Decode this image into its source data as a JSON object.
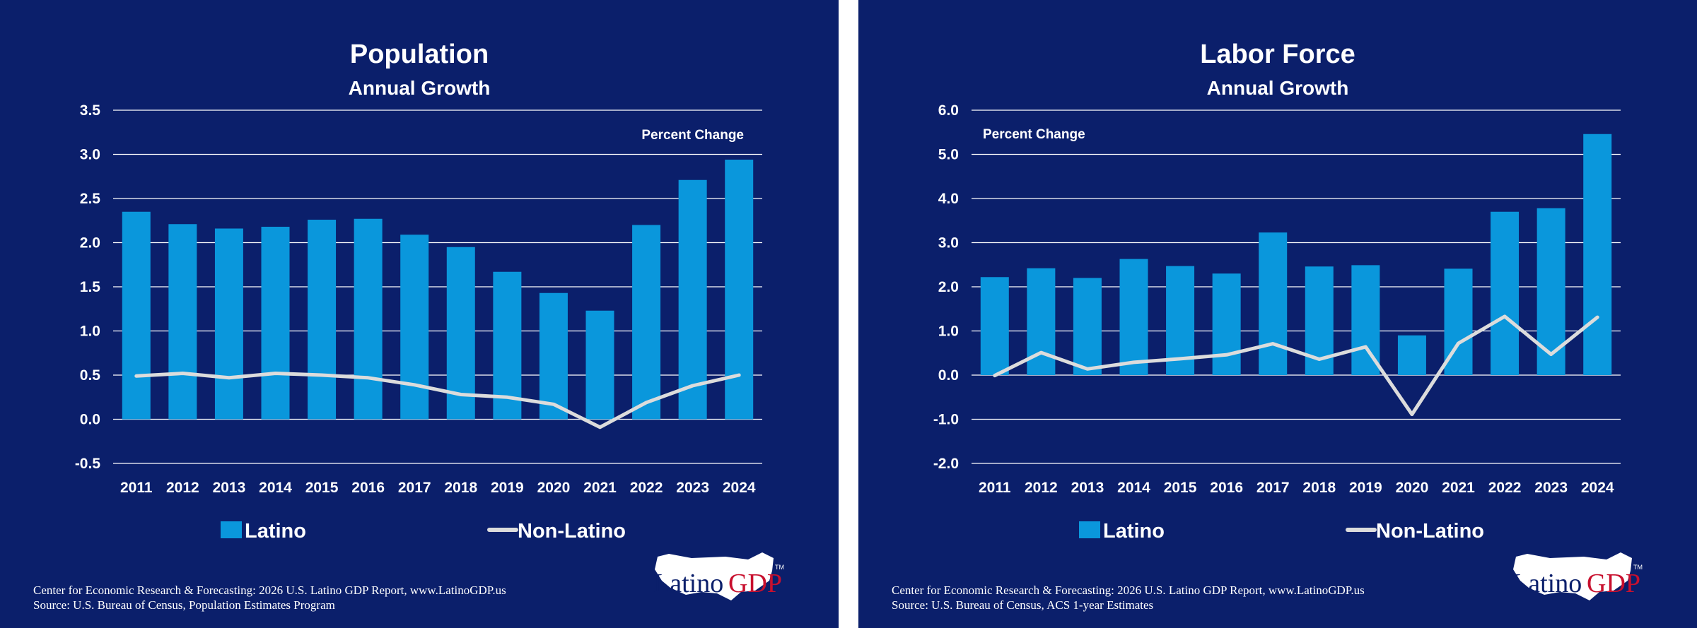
{
  "colors": {
    "background": "#0b1f6b",
    "bar": "#0a97dc",
    "line": "#dcdcdc",
    "grid": "#ffffff",
    "text": "#ffffff",
    "logo_red": "#c8102e"
  },
  "logo": {
    "text_latino": "Latino",
    "text_gdp": "GDP",
    "tm": "TM"
  },
  "chart_data": [
    {
      "type": "bar",
      "title": "Population",
      "subtitle": "Annual Growth",
      "annotation": "Percent Change",
      "annotation_position": "top-right",
      "categories": [
        "2011",
        "2012",
        "2013",
        "2014",
        "2015",
        "2016",
        "2017",
        "2018",
        "2019",
        "2020",
        "2021",
        "2022",
        "2023",
        "2024"
      ],
      "series": [
        {
          "name": "Latino",
          "type": "bar",
          "values": [
            2.35,
            2.21,
            2.16,
            2.18,
            2.26,
            2.27,
            2.09,
            1.95,
            1.67,
            1.43,
            1.23,
            2.2,
            2.71,
            2.94
          ]
        },
        {
          "name": "Non-Latino",
          "type": "line",
          "values": [
            0.49,
            0.52,
            0.47,
            0.52,
            0.5,
            0.47,
            0.39,
            0.28,
            0.25,
            0.17,
            -0.09,
            0.19,
            0.38,
            0.5
          ]
        }
      ],
      "ylim": [
        -0.5,
        3.5
      ],
      "yticks": [
        "3.5",
        "3.0",
        "2.5",
        "2.0",
        "1.5",
        "1.0",
        "0.5",
        "0.0",
        "-0.5"
      ],
      "grid": true,
      "legend": "bottom",
      "source_lines": [
        "Center for Economic Research & Forecasting: 2026 U.S. Latino GDP Report, www.LatinoGDP.us",
        "Source: U.S. Bureau of Census, Population Estimates Program"
      ]
    },
    {
      "type": "bar",
      "title": "Labor Force",
      "subtitle": "Annual Growth",
      "annotation": "Percent Change",
      "annotation_position": "top-left",
      "categories": [
        "2011",
        "2012",
        "2013",
        "2014",
        "2015",
        "2016",
        "2017",
        "2018",
        "2019",
        "2020",
        "2021",
        "2022",
        "2023",
        "2024"
      ],
      "series": [
        {
          "name": "Latino",
          "type": "bar",
          "values": [
            2.22,
            2.42,
            2.2,
            2.63,
            2.47,
            2.3,
            3.23,
            2.46,
            2.49,
            0.9,
            2.41,
            3.7,
            3.78,
            5.46
          ]
        },
        {
          "name": "Non-Latino",
          "type": "line",
          "values": [
            -0.01,
            0.51,
            0.14,
            0.29,
            0.37,
            0.46,
            0.71,
            0.36,
            0.64,
            -0.89,
            0.72,
            1.33,
            0.47,
            1.31
          ]
        }
      ],
      "ylim": [
        -2.0,
        6.0
      ],
      "yticks": [
        "6.0",
        "5.0",
        "4.0",
        "3.0",
        "2.0",
        "1.0",
        "0.0",
        "-1.0",
        "-2.0"
      ],
      "grid": true,
      "legend": "bottom",
      "source_lines": [
        "Center for Economic Research & Forecasting: 2026 U.S. Latino GDP Report, www.LatinoGDP.us",
        "Source: U.S. Bureau of Census, ACS 1-year Estimates"
      ]
    }
  ]
}
